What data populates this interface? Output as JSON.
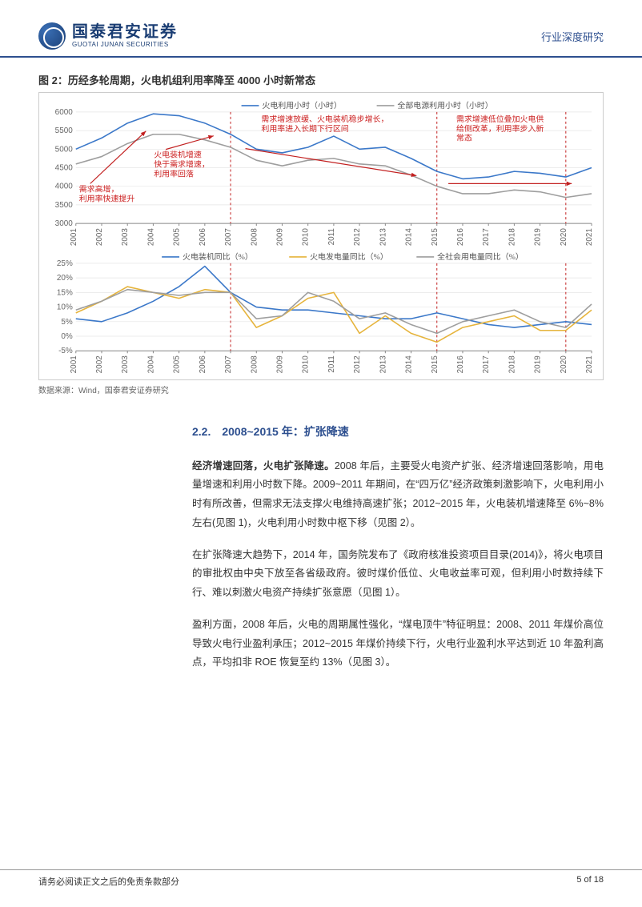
{
  "header": {
    "logo_cn": "国泰君安证券",
    "logo_en": "GUOTAI JUNAN SECURITIES",
    "right_label": "行业深度研究"
  },
  "figure": {
    "title": "图 2：历经多轮周期，火电机组利用率降至 4000 小时新常态",
    "source": "数据来源：Wind，国泰君安证券研究",
    "chart_top": {
      "type": "line",
      "legend": {
        "s1": "火电利用小时（小时）",
        "s2": "全部电源利用小时（小时）"
      },
      "years": [
        "2001",
        "2002",
        "2003",
        "2004",
        "2005",
        "2006",
        "2007",
        "2008",
        "2009",
        "2010",
        "2011",
        "2012",
        "2013",
        "2014",
        "2015",
        "2016",
        "2017",
        "2018",
        "2019",
        "2020",
        "2021"
      ],
      "ylim": [
        3000,
        6000
      ],
      "ytick_step": 500,
      "colors": {
        "s1": "#3b78c9",
        "s2": "#9e9e9e",
        "anno": "#c22020",
        "grid": "#e6e6e6",
        "divider": "#c22020"
      },
      "series": {
        "s1": [
          5000,
          5300,
          5700,
          5950,
          5900,
          5700,
          5400,
          5000,
          4900,
          5050,
          5350,
          5000,
          5050,
          4750,
          4400,
          4200,
          4250,
          4400,
          4350,
          4250,
          4500
        ],
        "s2": [
          4600,
          4800,
          5150,
          5400,
          5400,
          5250,
          5050,
          4700,
          4550,
          4700,
          4750,
          4600,
          4550,
          4300,
          4000,
          3800,
          3800,
          3900,
          3850,
          3700,
          3800
        ]
      },
      "annotations": {
        "a1_l1": "需求高增，",
        "a1_l2": "利用率快速提升",
        "a2_l1": "火电装机增速",
        "a2_l2": "快于需求增速，",
        "a2_l3": "利用率回落",
        "a3_l1": "需求增速放缓、火电装机稳步增长，",
        "a3_l2": "利用率进入长期下行区间",
        "a4_l1": "需求增速低位叠加火电供",
        "a4_l2": "给侧改革，利用率步入新",
        "a4_l3": "常态"
      },
      "dividers_x": [
        "2007",
        "2015",
        "2020"
      ]
    },
    "chart_bottom": {
      "type": "line",
      "legend": {
        "s1": "火电装机同比（%）",
        "s2": "火电发电量同比（%）",
        "s3": "全社会用电量同比（%）"
      },
      "years": [
        "2001",
        "2002",
        "2003",
        "2004",
        "2005",
        "2006",
        "2007",
        "2008",
        "2009",
        "2010",
        "2011",
        "2012",
        "2013",
        "2014",
        "2015",
        "2016",
        "2017",
        "2018",
        "2019",
        "2020",
        "2021"
      ],
      "ylim": [
        -5,
        25
      ],
      "ytick_step": 5,
      "colors": {
        "s1": "#3b78c9",
        "s2": "#e6b43c",
        "s3": "#9e9e9e",
        "grid": "#e6e6e6",
        "divider": "#c22020"
      },
      "series": {
        "s1": [
          6,
          5,
          8,
          12,
          17,
          24,
          15,
          10,
          9,
          9,
          8,
          7,
          6,
          6,
          8,
          6,
          4,
          3,
          4,
          5,
          4
        ],
        "s2": [
          8,
          12,
          17,
          15,
          13,
          16,
          15,
          3,
          7,
          13,
          15,
          1,
          7,
          1,
          -2,
          3,
          5,
          7,
          2,
          2,
          9
        ],
        "s3": [
          9,
          12,
          16,
          15,
          14,
          15,
          15,
          6,
          7,
          15,
          12,
          6,
          8,
          4,
          1,
          5,
          7,
          9,
          5,
          3,
          11
        ]
      },
      "dividers_x": [
        "2007",
        "2015",
        "2020"
      ]
    }
  },
  "section": {
    "heading": "2.2.　2008~2015 年：扩张降速",
    "p1_bold": "经济增速回落，火电扩张降速。",
    "p1": "2008 年后，主要受火电资产扩张、经济增速回落影响，用电量增速和利用小时数下降。2009~2011 年期间，在“四万亿”经济政策刺激影响下，火电利用小时有所改善，但需求无法支撑火电维持高速扩张；2012~2015 年，火电装机增速降至 6%~8%左右(见图 1)，火电利用小时数中枢下移（见图 2）。",
    "p2": "在扩张降速大趋势下，2014 年，国务院发布了《政府核准投资项目目录(2014)》，将火电项目的审批权由中央下放至各省级政府。彼时煤价低位、火电收益率可观，但利用小时数持续下行、难以刺激火电资产持续扩张意愿（见图 1）。",
    "p3": "盈利方面，2008 年后，火电的周期属性强化，“煤电顶牛”特征明显：2008、2011 年煤价高位导致火电行业盈利承压；2012~2015 年煤价持续下行，火电行业盈利水平达到近 10 年盈利高点，平均扣非 ROE 恢复至约 13%（见图 3）。"
  },
  "footer": {
    "left": "请务必阅读正文之后的免责条款部分",
    "right": "5 of 18"
  }
}
